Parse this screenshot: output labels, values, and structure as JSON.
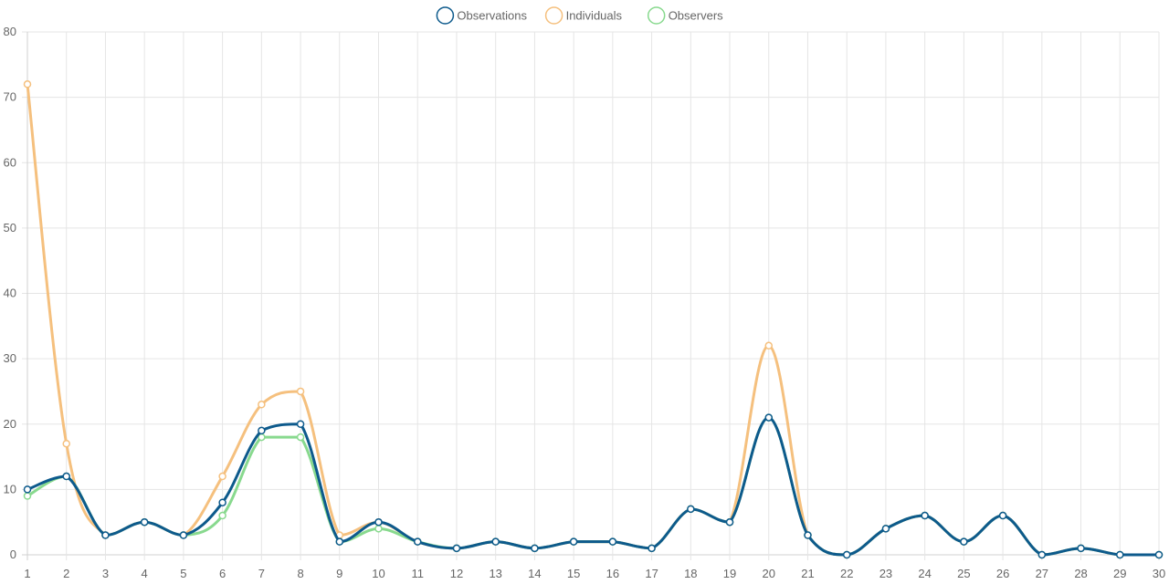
{
  "chart_data": {
    "type": "line",
    "title": "",
    "xlabel": "",
    "ylabel": "",
    "categories": [
      "1",
      "2",
      "3",
      "4",
      "5",
      "6",
      "7",
      "8",
      "9",
      "10",
      "11",
      "12",
      "13",
      "14",
      "15",
      "16",
      "17",
      "18",
      "19",
      "20",
      "21",
      "22",
      "23",
      "24",
      "25",
      "26",
      "27",
      "28",
      "29",
      "30"
    ],
    "ylim": [
      0,
      80
    ],
    "yticks": [
      0,
      10,
      20,
      30,
      40,
      50,
      60,
      70,
      80
    ],
    "grid": true,
    "legend_position": "top-center",
    "series": [
      {
        "name": "Observations",
        "color": "#0d5a8c",
        "values": [
          10,
          12,
          3,
          5,
          3,
          8,
          19,
          20,
          2,
          5,
          2,
          1,
          2,
          1,
          2,
          2,
          1,
          7,
          5,
          21,
          3,
          0,
          4,
          6,
          2,
          6,
          0,
          1,
          0,
          0
        ]
      },
      {
        "name": "Individuals",
        "color": "#f5c07e",
        "values": [
          72,
          17,
          3,
          5,
          3,
          12,
          23,
          25,
          3,
          5,
          2,
          1,
          2,
          1,
          2,
          2,
          1,
          7,
          5,
          32,
          3,
          0,
          4,
          6,
          2,
          6,
          0,
          1,
          0,
          0
        ]
      },
      {
        "name": "Observers",
        "color": "#88d98e",
        "values": [
          9,
          12,
          3,
          5,
          3,
          6,
          18,
          18,
          2,
          4,
          2,
          1,
          2,
          1,
          2,
          2,
          1,
          7,
          5,
          21,
          3,
          0,
          4,
          6,
          2,
          6,
          0,
          1,
          0,
          0
        ]
      }
    ]
  }
}
